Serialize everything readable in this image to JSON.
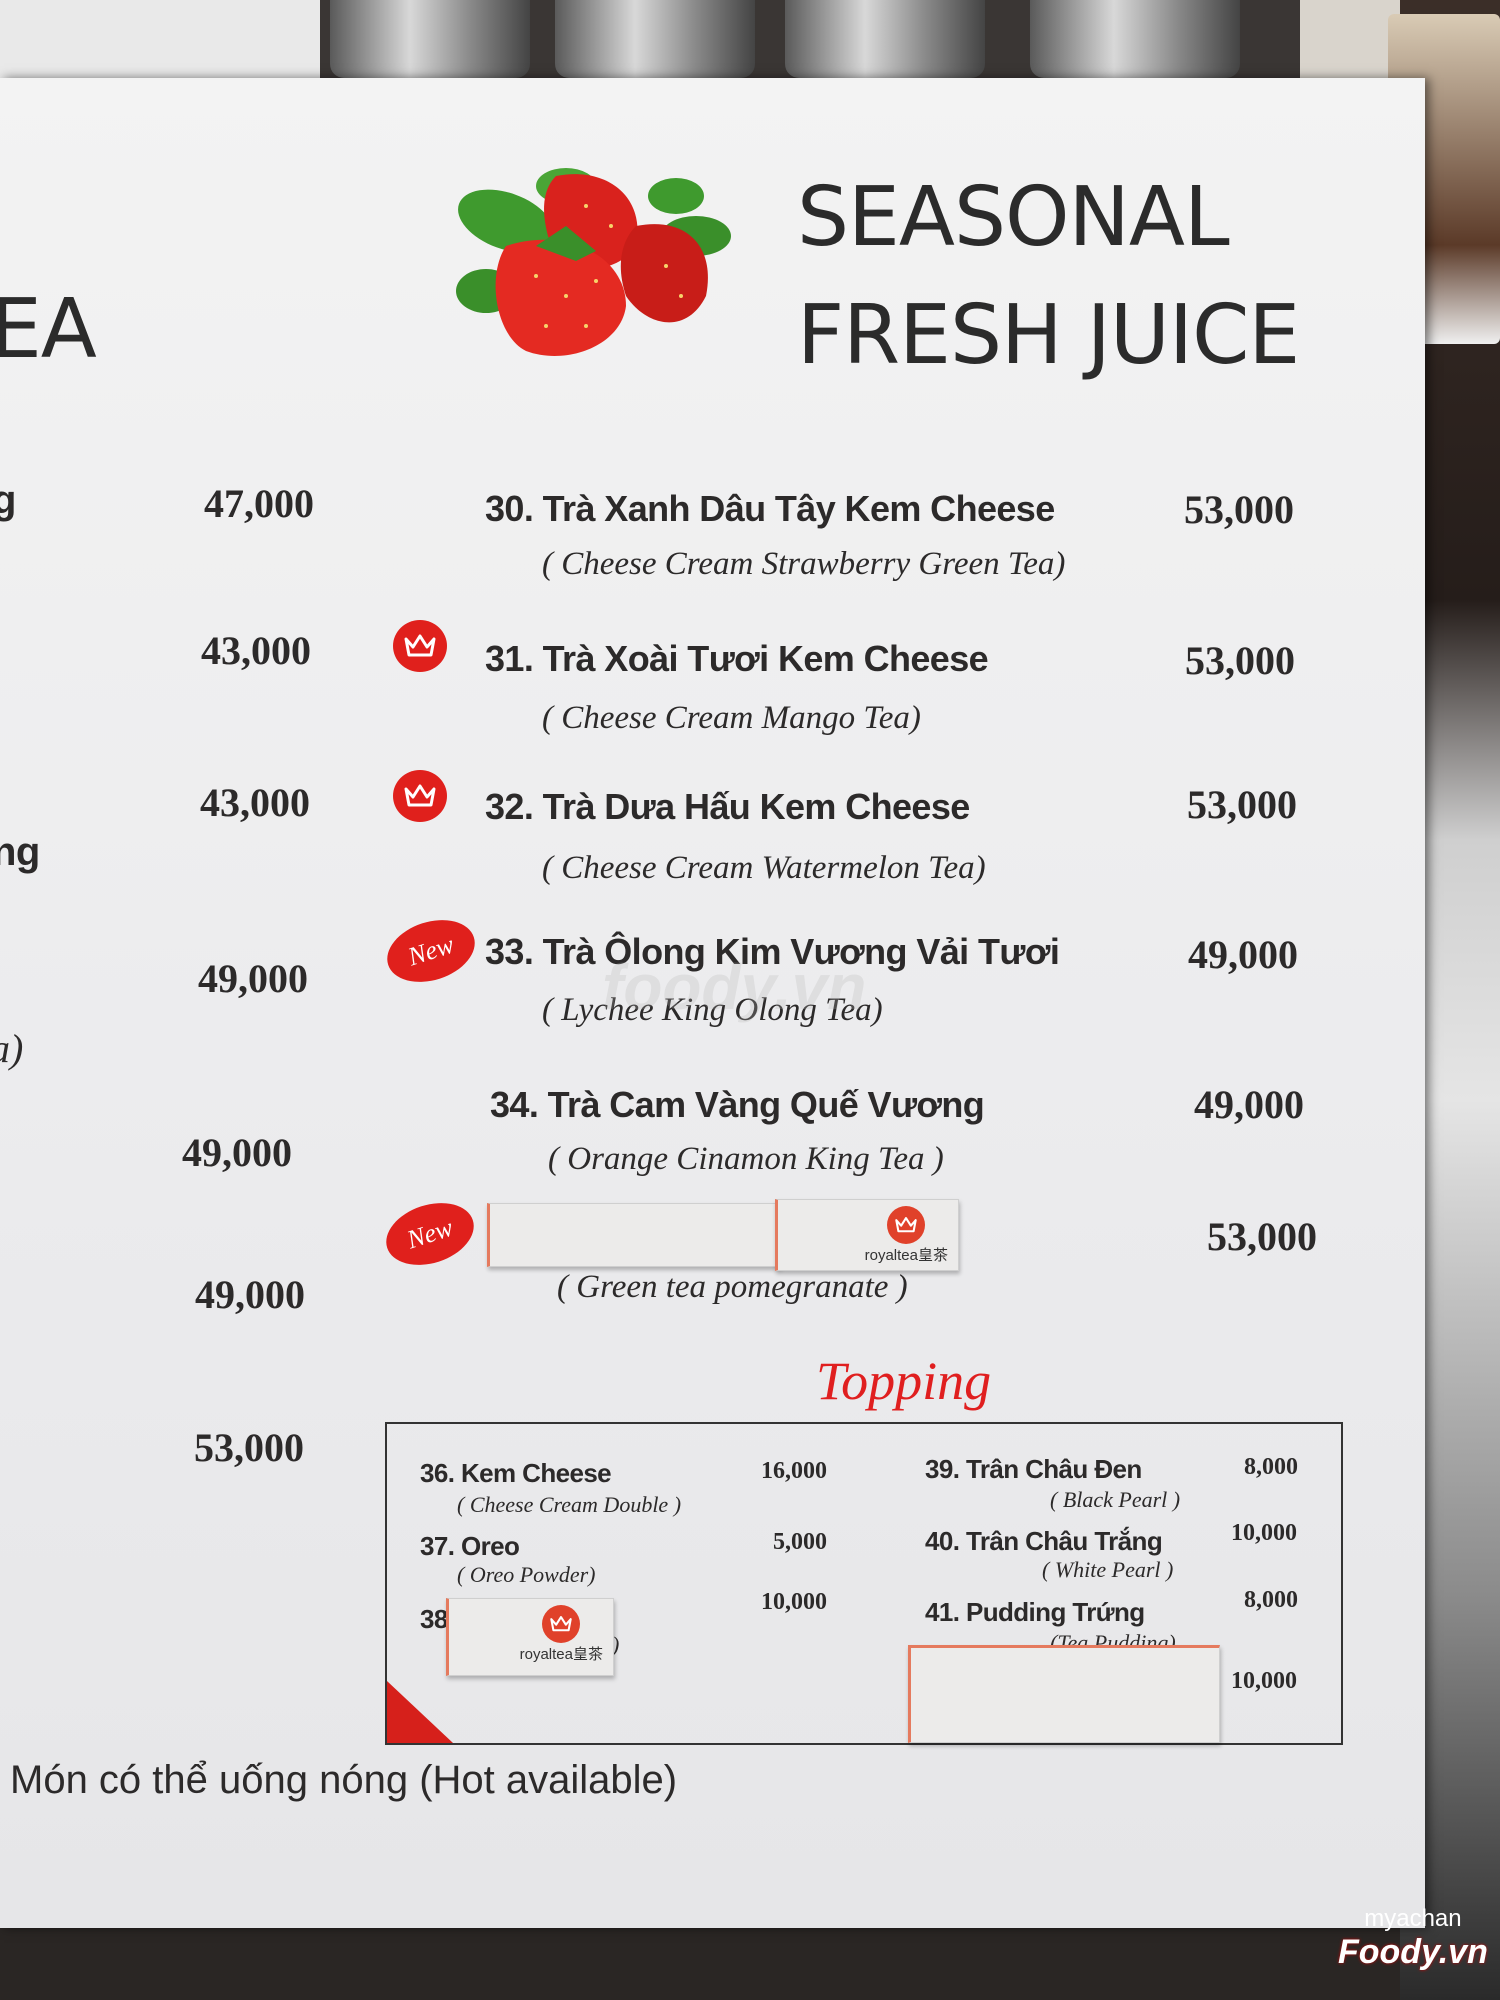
{
  "header": {
    "left_title_fragment": "EA",
    "title_line1": "SEASONAL",
    "title_line2": "FRESH JUICE"
  },
  "left_column": {
    "fragments": [
      "g",
      "ng",
      "a)"
    ],
    "prices": [
      "47,000",
      "43,000",
      "43,000",
      "49,000",
      "49,000",
      "49,000",
      "53,000"
    ]
  },
  "items": [
    {
      "name": "30. Trà Xanh Dâu Tây Kem Cheese",
      "subtitle": "( Cheese Cream Strawberry Green Tea)",
      "price": "53,000",
      "badge": ""
    },
    {
      "name": "31. Trà Xoài Tươi Kem Cheese",
      "subtitle": "( Cheese Cream Mango Tea)",
      "price": "53,000",
      "badge": "crown"
    },
    {
      "name": "32. Trà Dưa Hấu Kem Cheese",
      "subtitle": "( Cheese Cream Watermelon Tea)",
      "price": "53,000",
      "badge": "crown"
    },
    {
      "name": "33. Trà Ôlong Kim Vương Vải Tươi",
      "subtitle": "( Lychee King Olong Tea)",
      "price": "49,000",
      "badge": "New"
    },
    {
      "name": "34. Trà Cam Vàng Quế Vương",
      "subtitle": "( Orange Cinamon King Tea )",
      "price": "49,000",
      "badge": ""
    },
    {
      "name": "",
      "subtitle": "( Green tea pomegranate )",
      "price": "53,000",
      "badge": "New"
    }
  ],
  "sticker_brand": "royaltea皇茶",
  "topping": {
    "title": "Topping",
    "items": [
      {
        "name": "36. Kem Cheese",
        "subtitle": "( Cheese Cream Double )",
        "price": "16,000"
      },
      {
        "name": "37. Oreo",
        "subtitle": "( Oreo Powder)",
        "price": "5,000"
      },
      {
        "name": "38",
        "subtitle": ")",
        "price": "10,000"
      },
      {
        "name": "39. Trân Châu Đen",
        "subtitle": "( Black Pearl )",
        "price": "8,000"
      },
      {
        "name": "40. Trân Châu Trắng",
        "subtitle": "( White Pearl )",
        "price": "10,000"
      },
      {
        "name": "41. Pudding Trứng",
        "subtitle": "(Tea Pudding)",
        "price": "8,000"
      },
      {
        "name": "",
        "subtitle": "",
        "price": "10,000"
      }
    ]
  },
  "footer_note": "Món có thể uống nóng (Hot available)",
  "watermark": {
    "center": "foody.vn",
    "user": "myachan",
    "brand": "Foody.vn"
  },
  "colors": {
    "accent_red": "#e0201c",
    "text": "#2c2a2a",
    "board": "#efeff0"
  }
}
